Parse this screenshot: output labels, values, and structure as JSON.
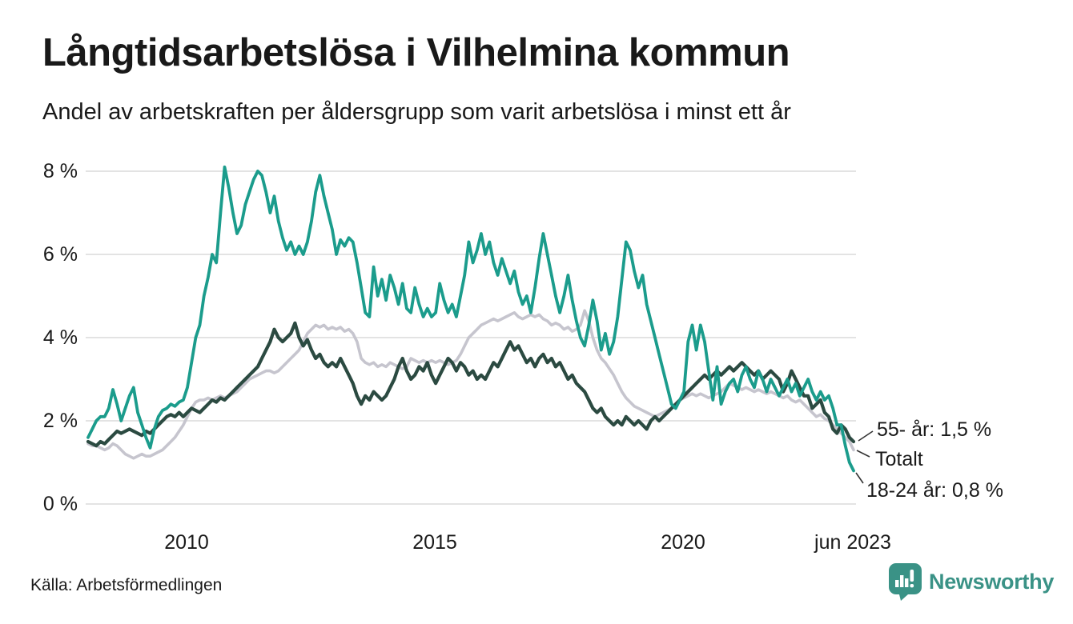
{
  "header": {
    "title": "Långtidsarbetslösa i Vilhelmina kommun",
    "subtitle": "Andel av arbetskraften per åldersgrupp som varit arbetslösa i minst ett år"
  },
  "footer": {
    "source": "Källa: Arbetsförmedlingen",
    "logo_text": "Newsworthy"
  },
  "colors": {
    "young_line": "#1b9c8c",
    "old_line": "#2b4a41",
    "total_line": "#c6c5ce",
    "grid": "#e3e3e3",
    "text": "#191919",
    "logo": "#3a9286"
  },
  "chart_data": {
    "type": "line",
    "title": "Långtidsarbetslösa i Vilhelmina kommun",
    "subtitle": "Andel av arbetskraften per åldersgrupp som varit arbetslösa i minst ett år",
    "unit": "%",
    "x_start": "2008-01",
    "x_end": "2023-06",
    "x_frequency": "monthly",
    "grid": "horizontal-only",
    "legend_position": "end-of-line-labels",
    "y_axis": {
      "min": 0,
      "max": 8,
      "ticks": [
        {
          "value": 8,
          "label": "8 %"
        },
        {
          "value": 6,
          "label": "6 %"
        },
        {
          "value": 4,
          "label": "4 %"
        },
        {
          "value": 2,
          "label": "2 %"
        },
        {
          "value": 0,
          "label": "0 %"
        }
      ]
    },
    "x_axis": {
      "ticks": [
        {
          "label": "2010",
          "month_index": 24
        },
        {
          "label": "2015",
          "month_index": 84
        },
        {
          "label": "2020",
          "month_index": 144
        },
        {
          "label": "jun 2023",
          "month_index": 185
        }
      ]
    },
    "annotations": [
      {
        "text": "55- år: 1,5 %",
        "series": "55- år"
      },
      {
        "text": "Totalt",
        "series": "Totalt"
      },
      {
        "text": "18-24 år: 0,8 %",
        "series": "18-24 år"
      }
    ],
    "series": [
      {
        "name": "Totalt",
        "color": "#c6c5ce",
        "stroke_width": 3.6,
        "values": [
          1.45,
          1.4,
          1.4,
          1.35,
          1.3,
          1.35,
          1.45,
          1.4,
          1.3,
          1.2,
          1.15,
          1.1,
          1.15,
          1.2,
          1.15,
          1.15,
          1.2,
          1.25,
          1.3,
          1.4,
          1.5,
          1.6,
          1.75,
          1.9,
          2.1,
          2.3,
          2.45,
          2.5,
          2.5,
          2.55,
          2.5,
          2.55,
          2.6,
          2.55,
          2.6,
          2.65,
          2.7,
          2.8,
          2.9,
          3.0,
          3.05,
          3.1,
          3.15,
          3.2,
          3.2,
          3.15,
          3.2,
          3.3,
          3.4,
          3.5,
          3.6,
          3.7,
          3.9,
          4.1,
          4.2,
          4.3,
          4.25,
          4.3,
          4.2,
          4.25,
          4.2,
          4.25,
          4.15,
          4.2,
          4.1,
          3.9,
          3.5,
          3.4,
          3.35,
          3.4,
          3.3,
          3.35,
          3.3,
          3.4,
          3.35,
          3.3,
          3.25,
          3.3,
          3.5,
          3.45,
          3.4,
          3.45,
          3.4,
          3.45,
          3.4,
          3.45,
          3.4,
          3.35,
          3.4,
          3.45,
          3.6,
          3.8,
          4.0,
          4.1,
          4.2,
          4.3,
          4.35,
          4.4,
          4.45,
          4.4,
          4.45,
          4.5,
          4.55,
          4.6,
          4.5,
          4.45,
          4.5,
          4.55,
          4.5,
          4.55,
          4.45,
          4.4,
          4.3,
          4.35,
          4.3,
          4.2,
          4.25,
          4.15,
          4.2,
          4.3,
          4.65,
          4.4,
          4.0,
          3.7,
          3.5,
          3.4,
          3.25,
          3.1,
          2.9,
          2.7,
          2.55,
          2.45,
          2.35,
          2.3,
          2.25,
          2.2,
          2.15,
          2.1,
          2.15,
          2.2,
          2.25,
          2.3,
          2.4,
          2.5,
          2.55,
          2.6,
          2.65,
          2.6,
          2.65,
          2.6,
          2.55,
          2.6,
          2.65,
          2.7,
          2.8,
          2.9,
          2.85,
          2.8,
          2.75,
          2.8,
          2.75,
          2.7,
          2.75,
          2.7,
          2.65,
          2.7,
          2.65,
          2.6,
          2.55,
          2.6,
          2.5,
          2.45,
          2.5,
          2.4,
          2.3,
          2.2,
          2.1,
          2.15,
          2.05,
          2.0,
          1.9,
          1.8,
          1.7,
          1.6,
          1.5,
          1.3
        ]
      },
      {
        "name": "55- år",
        "color": "#2b4a41",
        "stroke_width": 4.2,
        "last_value_label": "1,5 %",
        "values": [
          1.5,
          1.45,
          1.4,
          1.5,
          1.45,
          1.55,
          1.65,
          1.75,
          1.7,
          1.75,
          1.8,
          1.75,
          1.7,
          1.65,
          1.75,
          1.7,
          1.8,
          1.9,
          2.0,
          2.1,
          2.15,
          2.1,
          2.2,
          2.1,
          2.2,
          2.3,
          2.25,
          2.2,
          2.3,
          2.4,
          2.5,
          2.45,
          2.55,
          2.5,
          2.6,
          2.7,
          2.8,
          2.9,
          3.0,
          3.1,
          3.2,
          3.3,
          3.5,
          3.7,
          3.9,
          4.2,
          4.0,
          3.9,
          4.0,
          4.1,
          4.35,
          4.0,
          3.8,
          3.95,
          3.7,
          3.5,
          3.6,
          3.4,
          3.3,
          3.4,
          3.3,
          3.5,
          3.3,
          3.1,
          2.9,
          2.6,
          2.4,
          2.6,
          2.5,
          2.7,
          2.6,
          2.5,
          2.6,
          2.8,
          3.0,
          3.3,
          3.5,
          3.2,
          3.0,
          3.1,
          3.3,
          3.2,
          3.4,
          3.1,
          2.9,
          3.1,
          3.3,
          3.5,
          3.4,
          3.2,
          3.4,
          3.3,
          3.1,
          3.2,
          3.0,
          3.1,
          3.0,
          3.2,
          3.4,
          3.3,
          3.5,
          3.7,
          3.9,
          3.7,
          3.8,
          3.6,
          3.4,
          3.5,
          3.3,
          3.5,
          3.6,
          3.4,
          3.5,
          3.3,
          3.4,
          3.2,
          3.0,
          3.1,
          2.9,
          2.8,
          2.7,
          2.5,
          2.3,
          2.2,
          2.3,
          2.1,
          2.0,
          1.9,
          2.0,
          1.9,
          2.1,
          2.0,
          1.9,
          2.0,
          1.9,
          1.8,
          2.0,
          2.1,
          2.0,
          2.1,
          2.2,
          2.3,
          2.4,
          2.5,
          2.6,
          2.7,
          2.8,
          2.9,
          3.0,
          3.1,
          3.0,
          3.1,
          3.2,
          3.1,
          3.2,
          3.3,
          3.2,
          3.3,
          3.4,
          3.3,
          3.2,
          3.1,
          3.2,
          3.0,
          3.1,
          3.2,
          3.1,
          3.0,
          2.7,
          2.9,
          3.2,
          3.0,
          2.8,
          2.6,
          2.6,
          2.3,
          2.4,
          2.5,
          2.2,
          2.1,
          1.8,
          1.7,
          1.9,
          1.8,
          1.6,
          1.5
        ]
      },
      {
        "name": "18-24 år",
        "color": "#1b9c8c",
        "stroke_width": 3.8,
        "last_value_label": "0,8 %",
        "values": [
          1.6,
          1.8,
          2.0,
          2.1,
          2.1,
          2.3,
          2.75,
          2.4,
          2.0,
          2.3,
          2.6,
          2.8,
          2.2,
          1.9,
          1.6,
          1.35,
          1.8,
          2.1,
          2.25,
          2.3,
          2.4,
          2.35,
          2.45,
          2.5,
          2.8,
          3.4,
          4.0,
          4.3,
          5.0,
          5.45,
          6.0,
          5.8,
          7.0,
          8.1,
          7.6,
          7.0,
          6.5,
          6.7,
          7.2,
          7.5,
          7.8,
          8.0,
          7.9,
          7.5,
          7.0,
          7.4,
          6.8,
          6.4,
          6.1,
          6.3,
          6.0,
          6.2,
          6.0,
          6.3,
          6.8,
          7.5,
          7.9,
          7.4,
          7.0,
          6.6,
          6.0,
          6.35,
          6.2,
          6.4,
          6.3,
          5.8,
          5.2,
          4.6,
          4.5,
          5.7,
          5.0,
          5.4,
          4.9,
          5.5,
          5.2,
          4.8,
          5.3,
          4.7,
          4.6,
          5.2,
          4.8,
          4.5,
          4.7,
          4.5,
          4.6,
          5.3,
          4.9,
          4.6,
          4.8,
          4.5,
          5.0,
          5.5,
          6.3,
          5.8,
          6.1,
          6.5,
          6.0,
          6.3,
          5.8,
          5.5,
          5.9,
          5.6,
          5.3,
          5.6,
          5.1,
          4.8,
          5.0,
          4.6,
          5.2,
          5.9,
          6.5,
          6.0,
          5.5,
          5.0,
          4.6,
          5.0,
          5.5,
          4.9,
          4.4,
          4.0,
          3.8,
          4.3,
          4.9,
          4.4,
          3.7,
          4.1,
          3.6,
          3.9,
          4.5,
          5.4,
          6.3,
          6.1,
          5.6,
          5.2,
          5.5,
          4.8,
          4.4,
          4.0,
          3.6,
          3.2,
          2.8,
          2.4,
          2.3,
          2.5,
          2.7,
          3.9,
          4.3,
          3.7,
          4.3,
          3.9,
          3.2,
          2.5,
          3.3,
          2.4,
          2.7,
          2.9,
          3.0,
          2.7,
          3.1,
          3.3,
          3.0,
          2.8,
          3.2,
          3.0,
          2.7,
          3.0,
          2.8,
          2.6,
          2.8,
          3.0,
          2.7,
          2.9,
          2.6,
          2.8,
          3.0,
          2.7,
          2.5,
          2.7,
          2.5,
          2.6,
          2.3,
          1.9,
          1.9,
          1.4,
          1.0,
          0.8
        ]
      }
    ]
  }
}
